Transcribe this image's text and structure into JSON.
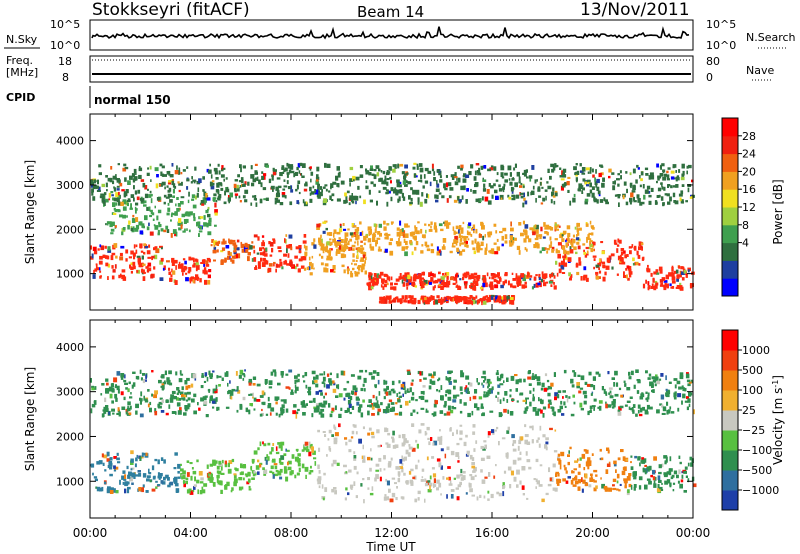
{
  "header": {
    "station": "Stokkseyri (fitACF)",
    "beam": "Beam 14",
    "date": "13/Nov/2011"
  },
  "sky_panel": {
    "label": "N.Sky",
    "right_label": "N.Search",
    "ticks": [
      "10^5",
      "10^0"
    ]
  },
  "freq_panel": {
    "label_line1": "Freq.",
    "label_line2": "[MHz]",
    "ticks": [
      "18",
      "8"
    ],
    "right_label": "Nave",
    "right_ticks": [
      "80",
      "0"
    ]
  },
  "cpid": {
    "label": "CPID",
    "value": "normal 150"
  },
  "x_axis": {
    "label": "Time UT",
    "ticks": [
      "00:00",
      "04:00",
      "08:00",
      "12:00",
      "16:00",
      "20:00",
      "00:00"
    ]
  },
  "chart_data": [
    {
      "type": "heatmap",
      "name": "power",
      "ylabel": "Slant Range [km]",
      "y_ticks": [
        1000,
        2000,
        3000,
        4000
      ],
      "ylim": [
        180,
        4600
      ],
      "xlim_hours": [
        0,
        24
      ],
      "colorbar": {
        "label": "Power [dB]",
        "ticks": [
          "28",
          "24",
          "20",
          "16",
          "12",
          "8",
          "4"
        ],
        "colors": [
          "#0000ff",
          "#1f3fa0",
          "#2f6f3f",
          "#3f9f4f",
          "#9fd040",
          "#f0e020",
          "#f0a020",
          "#f06010",
          "#f02010",
          "#ff0000"
        ]
      },
      "bands": [
        {
          "t0": 0.0,
          "t1": 3.0,
          "r0": 900,
          "r1": 1700,
          "color": "#ff2a10"
        },
        {
          "t0": 3.0,
          "t1": 4.8,
          "r0": 850,
          "r1": 1400,
          "color": "#ff2a10"
        },
        {
          "t0": 4.8,
          "t1": 6.5,
          "r0": 1300,
          "r1": 1800,
          "color": "#f06010"
        },
        {
          "t0": 6.5,
          "t1": 8.5,
          "r0": 1100,
          "r1": 1900,
          "color": "#ff2a10"
        },
        {
          "t0": 8.5,
          "t1": 11.0,
          "r0": 1000,
          "r1": 1800,
          "color": "#f0a020"
        },
        {
          "t0": 11.0,
          "t1": 18.5,
          "r0": 700,
          "r1": 1050,
          "color": "#ff2a10"
        },
        {
          "t0": 11.5,
          "t1": 16.8,
          "r0": 380,
          "r1": 520,
          "color": "#ff2a10"
        },
        {
          "t0": 18.5,
          "t1": 22.0,
          "r0": 900,
          "r1": 1800,
          "color": "#ff2a10"
        },
        {
          "t0": 22.0,
          "t1": 24.0,
          "r0": 700,
          "r1": 1200,
          "color": "#ff2a10"
        },
        {
          "t0": 9.0,
          "t1": 20.0,
          "r0": 1500,
          "r1": 2200,
          "color": "#f0a020"
        },
        {
          "t0": 0.5,
          "t1": 5.0,
          "r0": 1900,
          "r1": 2800,
          "color": "#3f9f4f"
        },
        {
          "t0": 0.0,
          "t1": 24.0,
          "r0": 2600,
          "r1": 3500,
          "color": "#2f6f3f"
        }
      ]
    },
    {
      "type": "heatmap",
      "name": "velocity",
      "ylabel": "Slant Range [km]",
      "y_ticks": [
        1000,
        2000,
        3000,
        4000
      ],
      "ylim": [
        180,
        4600
      ],
      "xlim_hours": [
        0,
        24
      ],
      "colorbar": {
        "label": "Velocity [m s^-1]",
        "ticks": [
          "1000",
          "500",
          "100",
          "25",
          "−25",
          "−100",
          "−500",
          "−1000"
        ],
        "colors": [
          "#1e3fa8",
          "#2f6f9f",
          "#2f8f4f",
          "#58c040",
          "#c8c8c0",
          "#f0b030",
          "#f08010",
          "#f04010",
          "#ff0000"
        ]
      },
      "bands": [
        {
          "t0": 0.0,
          "t1": 3.5,
          "r0": 800,
          "r1": 1700,
          "color": "#2f7f9f"
        },
        {
          "t0": 3.5,
          "t1": 6.5,
          "r0": 800,
          "r1": 1500,
          "color": "#58c040"
        },
        {
          "t0": 6.5,
          "t1": 9.0,
          "r0": 1100,
          "r1": 1900,
          "color": "#58c040"
        },
        {
          "t0": 9.0,
          "t1": 18.5,
          "r0": 600,
          "r1": 2300,
          "color": "#c8c8c0"
        },
        {
          "t0": 18.5,
          "t1": 21.5,
          "r0": 800,
          "r1": 1800,
          "color": "#f08010"
        },
        {
          "t0": 21.5,
          "t1": 24.0,
          "r0": 800,
          "r1": 1600,
          "color": "#2f8f4f"
        },
        {
          "t0": 0.0,
          "t1": 24.0,
          "r0": 2500,
          "r1": 3500,
          "color": "#2f8f4f"
        }
      ]
    }
  ]
}
